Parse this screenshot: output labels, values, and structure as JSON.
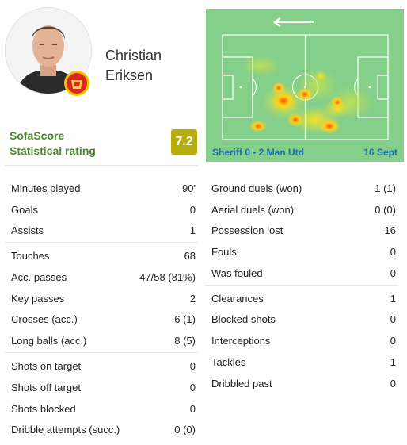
{
  "player": {
    "name_first": "Christian",
    "name_last": "Eriksen"
  },
  "rating": {
    "label_line1": "SofaScore",
    "label_line2": "Statistical rating",
    "value": "7.2"
  },
  "match": {
    "teams": "Sheriff 0 - 2 Man Utd",
    "date": "16 Sept"
  },
  "colors": {
    "pitch": "#84cf8a",
    "rating": "#b6ad0b",
    "label_green": "#4a8a2a",
    "link_blue": "#1a6fb0"
  },
  "icons": {
    "direction": "arrow-left-icon",
    "club": "manchester-united-crest-icon"
  },
  "stats_left": [
    [
      {
        "label": "Minutes played",
        "value": "90'"
      },
      {
        "label": "Goals",
        "value": "0"
      },
      {
        "label": "Assists",
        "value": "1"
      }
    ],
    [
      {
        "label": "Touches",
        "value": "68"
      },
      {
        "label": "Acc. passes",
        "value": "47/58 (81%)"
      },
      {
        "label": "Key passes",
        "value": "2"
      },
      {
        "label": "Crosses (acc.)",
        "value": "6 (1)"
      },
      {
        "label": "Long balls (acc.)",
        "value": "8 (5)"
      }
    ],
    [
      {
        "label": "Shots on target",
        "value": "0"
      },
      {
        "label": "Shots off target",
        "value": "0"
      },
      {
        "label": "Shots blocked",
        "value": "0"
      },
      {
        "label": "Dribble attempts (succ.)",
        "value": "0 (0)"
      }
    ]
  ],
  "stats_right": [
    [
      {
        "label": "Ground duels (won)",
        "value": "1 (1)"
      },
      {
        "label": "Aerial duels (won)",
        "value": "0 (0)"
      },
      {
        "label": "Possession lost",
        "value": "16"
      },
      {
        "label": "Fouls",
        "value": "0"
      },
      {
        "label": "Was fouled",
        "value": "0"
      }
    ],
    [
      {
        "label": "Clearances",
        "value": "1"
      },
      {
        "label": "Blocked shots",
        "value": "0"
      },
      {
        "label": "Interceptions",
        "value": "0"
      },
      {
        "label": "Tackles",
        "value": "1"
      },
      {
        "label": "Dribbled past",
        "value": "0"
      }
    ]
  ]
}
